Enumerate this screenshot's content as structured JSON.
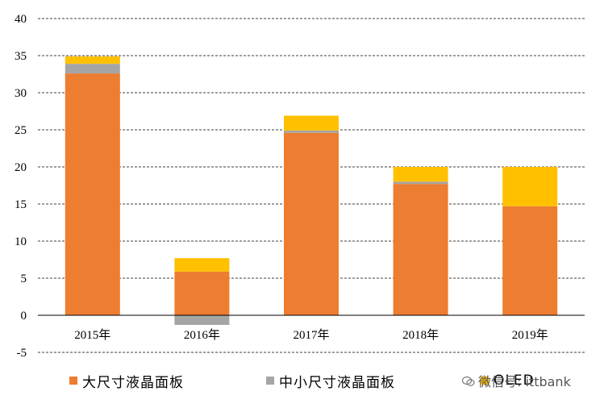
{
  "chart_data": {
    "type": "bar",
    "stacked": true,
    "categories": [
      "2015年",
      "2016年",
      "2017年",
      "2018年",
      "2019年"
    ],
    "series": [
      {
        "name": "大尺寸液晶面板",
        "color": "#ED7D31",
        "values": [
          32.6,
          5.9,
          24.6,
          17.7,
          14.7
        ]
      },
      {
        "name": "中小尺寸液晶面板",
        "color": "#A5A5A5",
        "values": [
          1.3,
          -1.3,
          0.3,
          0.3,
          0
        ]
      },
      {
        "name": "OLED",
        "color": "#FFC000",
        "values": [
          1.0,
          1.8,
          2.0,
          2.0,
          5.3
        ]
      }
    ],
    "yticks": [
      -5,
      0,
      5,
      10,
      15,
      20,
      25,
      30,
      35,
      40
    ],
    "ylim": [
      -5,
      40
    ],
    "grid": true,
    "legend_position": "bottom",
    "title": "",
    "xlabel": "",
    "ylabel": ""
  },
  "watermark": {
    "text": "微信号: ittbank"
  }
}
